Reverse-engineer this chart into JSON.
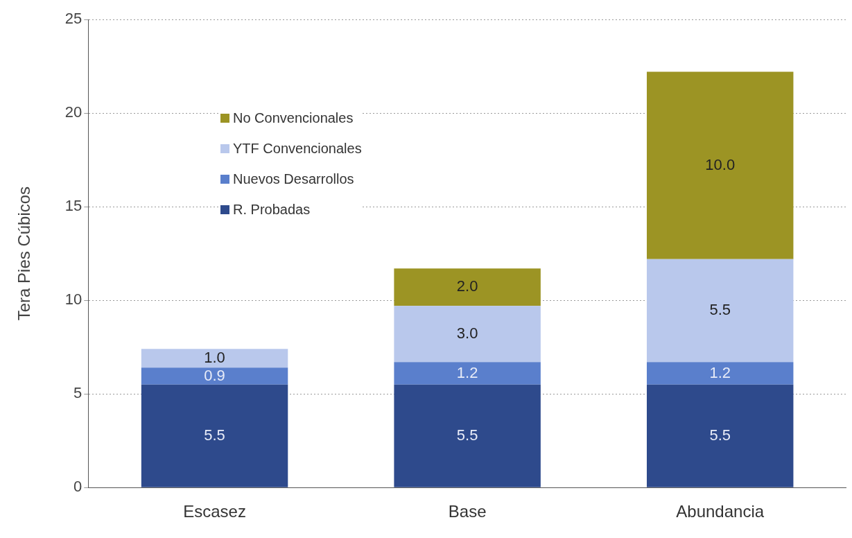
{
  "chart_data": {
    "type": "bar",
    "stacked": true,
    "ylabel": "Tera Pies Cúbicos",
    "categories": [
      "Escasez",
      "Base",
      "Abundancia"
    ],
    "series": [
      {
        "name": "R. Probadas",
        "color": "#2e4a8c",
        "values": [
          5.5,
          5.5,
          5.5
        ],
        "value_labels": [
          "5.5",
          "5.5",
          "5.5"
        ]
      },
      {
        "name": "Nuevos Desarrollos",
        "color": "#5a7fcc",
        "values": [
          0.9,
          1.2,
          1.2
        ],
        "value_labels": [
          "0.9",
          "1.2",
          "1.2"
        ]
      },
      {
        "name": "YTF Convencionales",
        "color": "#b9c8ec",
        "values": [
          1.0,
          3.0,
          5.5
        ],
        "value_labels": [
          "1.0",
          "3.0",
          "5.5"
        ]
      },
      {
        "name": "No Convencionales",
        "color": "#9c9424",
        "values": [
          null,
          2.0,
          10.0
        ],
        "value_labels": [
          null,
          "2.0",
          "10.0"
        ]
      }
    ],
    "ylim": [
      0,
      25
    ],
    "yticks": [
      0,
      5,
      10,
      15,
      20,
      25
    ],
    "grid": "y",
    "legend": "top left"
  }
}
